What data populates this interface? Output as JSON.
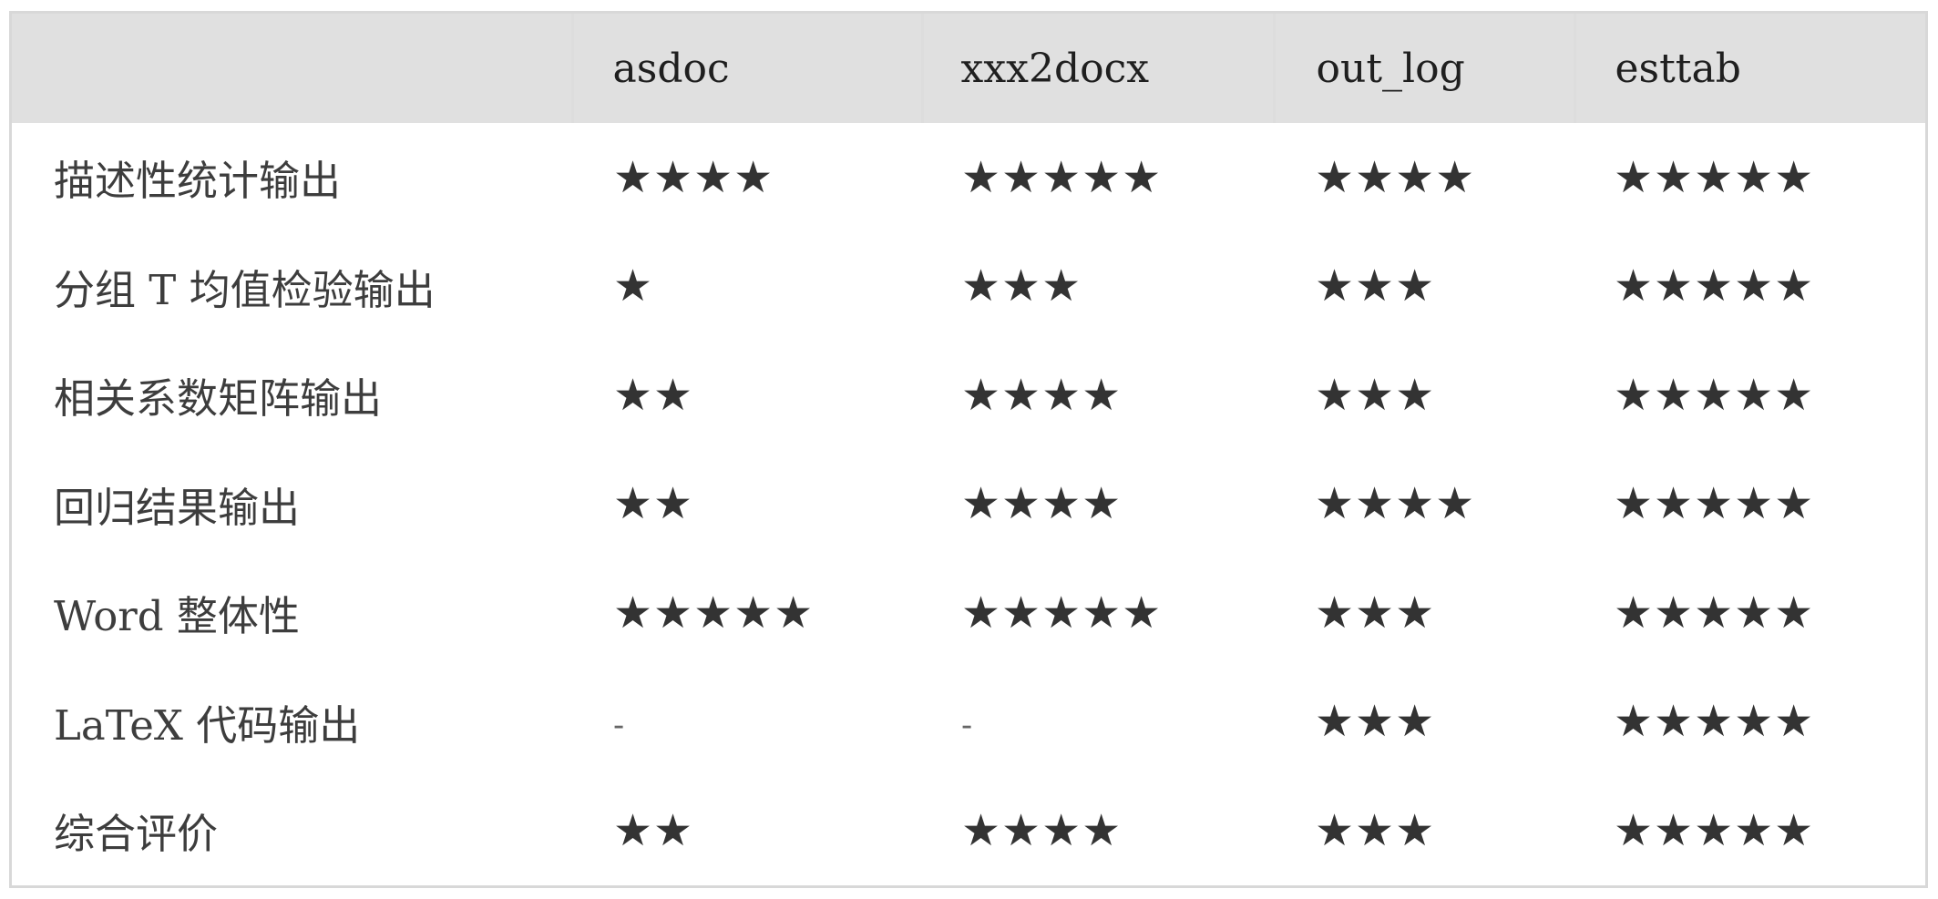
{
  "table": {
    "columns": [
      "",
      "asdoc",
      "xxx2docx",
      "out_log",
      "esttab"
    ],
    "rows": [
      {
        "label": "描述性统计输出",
        "cells": [
          4,
          5,
          4,
          5
        ]
      },
      {
        "label": "分组 T 均值检验输出",
        "cells": [
          1,
          3,
          3,
          5
        ]
      },
      {
        "label": "相关系数矩阵输出",
        "cells": [
          2,
          4,
          3,
          5
        ]
      },
      {
        "label": "回归结果输出",
        "cells": [
          2,
          4,
          4,
          5
        ]
      },
      {
        "label": "Word 整体性",
        "cells": [
          5,
          5,
          3,
          5
        ]
      },
      {
        "label": "LaTeX 代码输出",
        "cells": [
          "-",
          "-",
          3,
          5
        ]
      },
      {
        "label": "综合评价",
        "cells": [
          2,
          4,
          3,
          5
        ]
      }
    ]
  },
  "colors": {
    "header_bg": "#e0e0e0",
    "border": "#d8d8d8",
    "text": "#3b3b3b"
  }
}
